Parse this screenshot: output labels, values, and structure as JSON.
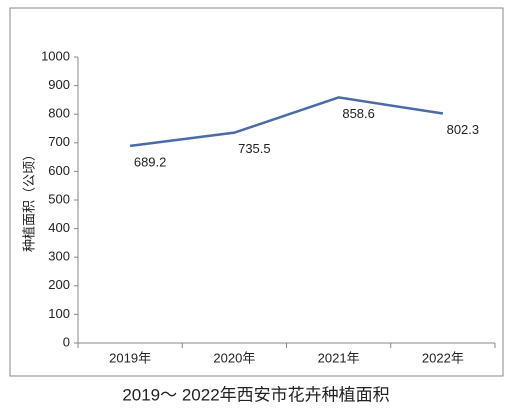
{
  "chart_data": {
    "type": "line",
    "title": "2019～ 2022年西安市花卉种植面积",
    "y_label": "种植面积（公顷）",
    "categories": [
      "2019年",
      "2020年",
      "2021年",
      "2022年"
    ],
    "series": [
      {
        "name": "种植面积",
        "color": "#4a6aa8",
        "values": [
          689.2,
          735.5,
          858.6,
          802.3
        ]
      }
    ],
    "ylim": [
      0,
      1000
    ],
    "yticks": [
      0,
      100,
      200,
      300,
      400,
      500,
      600,
      700,
      800,
      900,
      1000
    ],
    "grid": false
  }
}
